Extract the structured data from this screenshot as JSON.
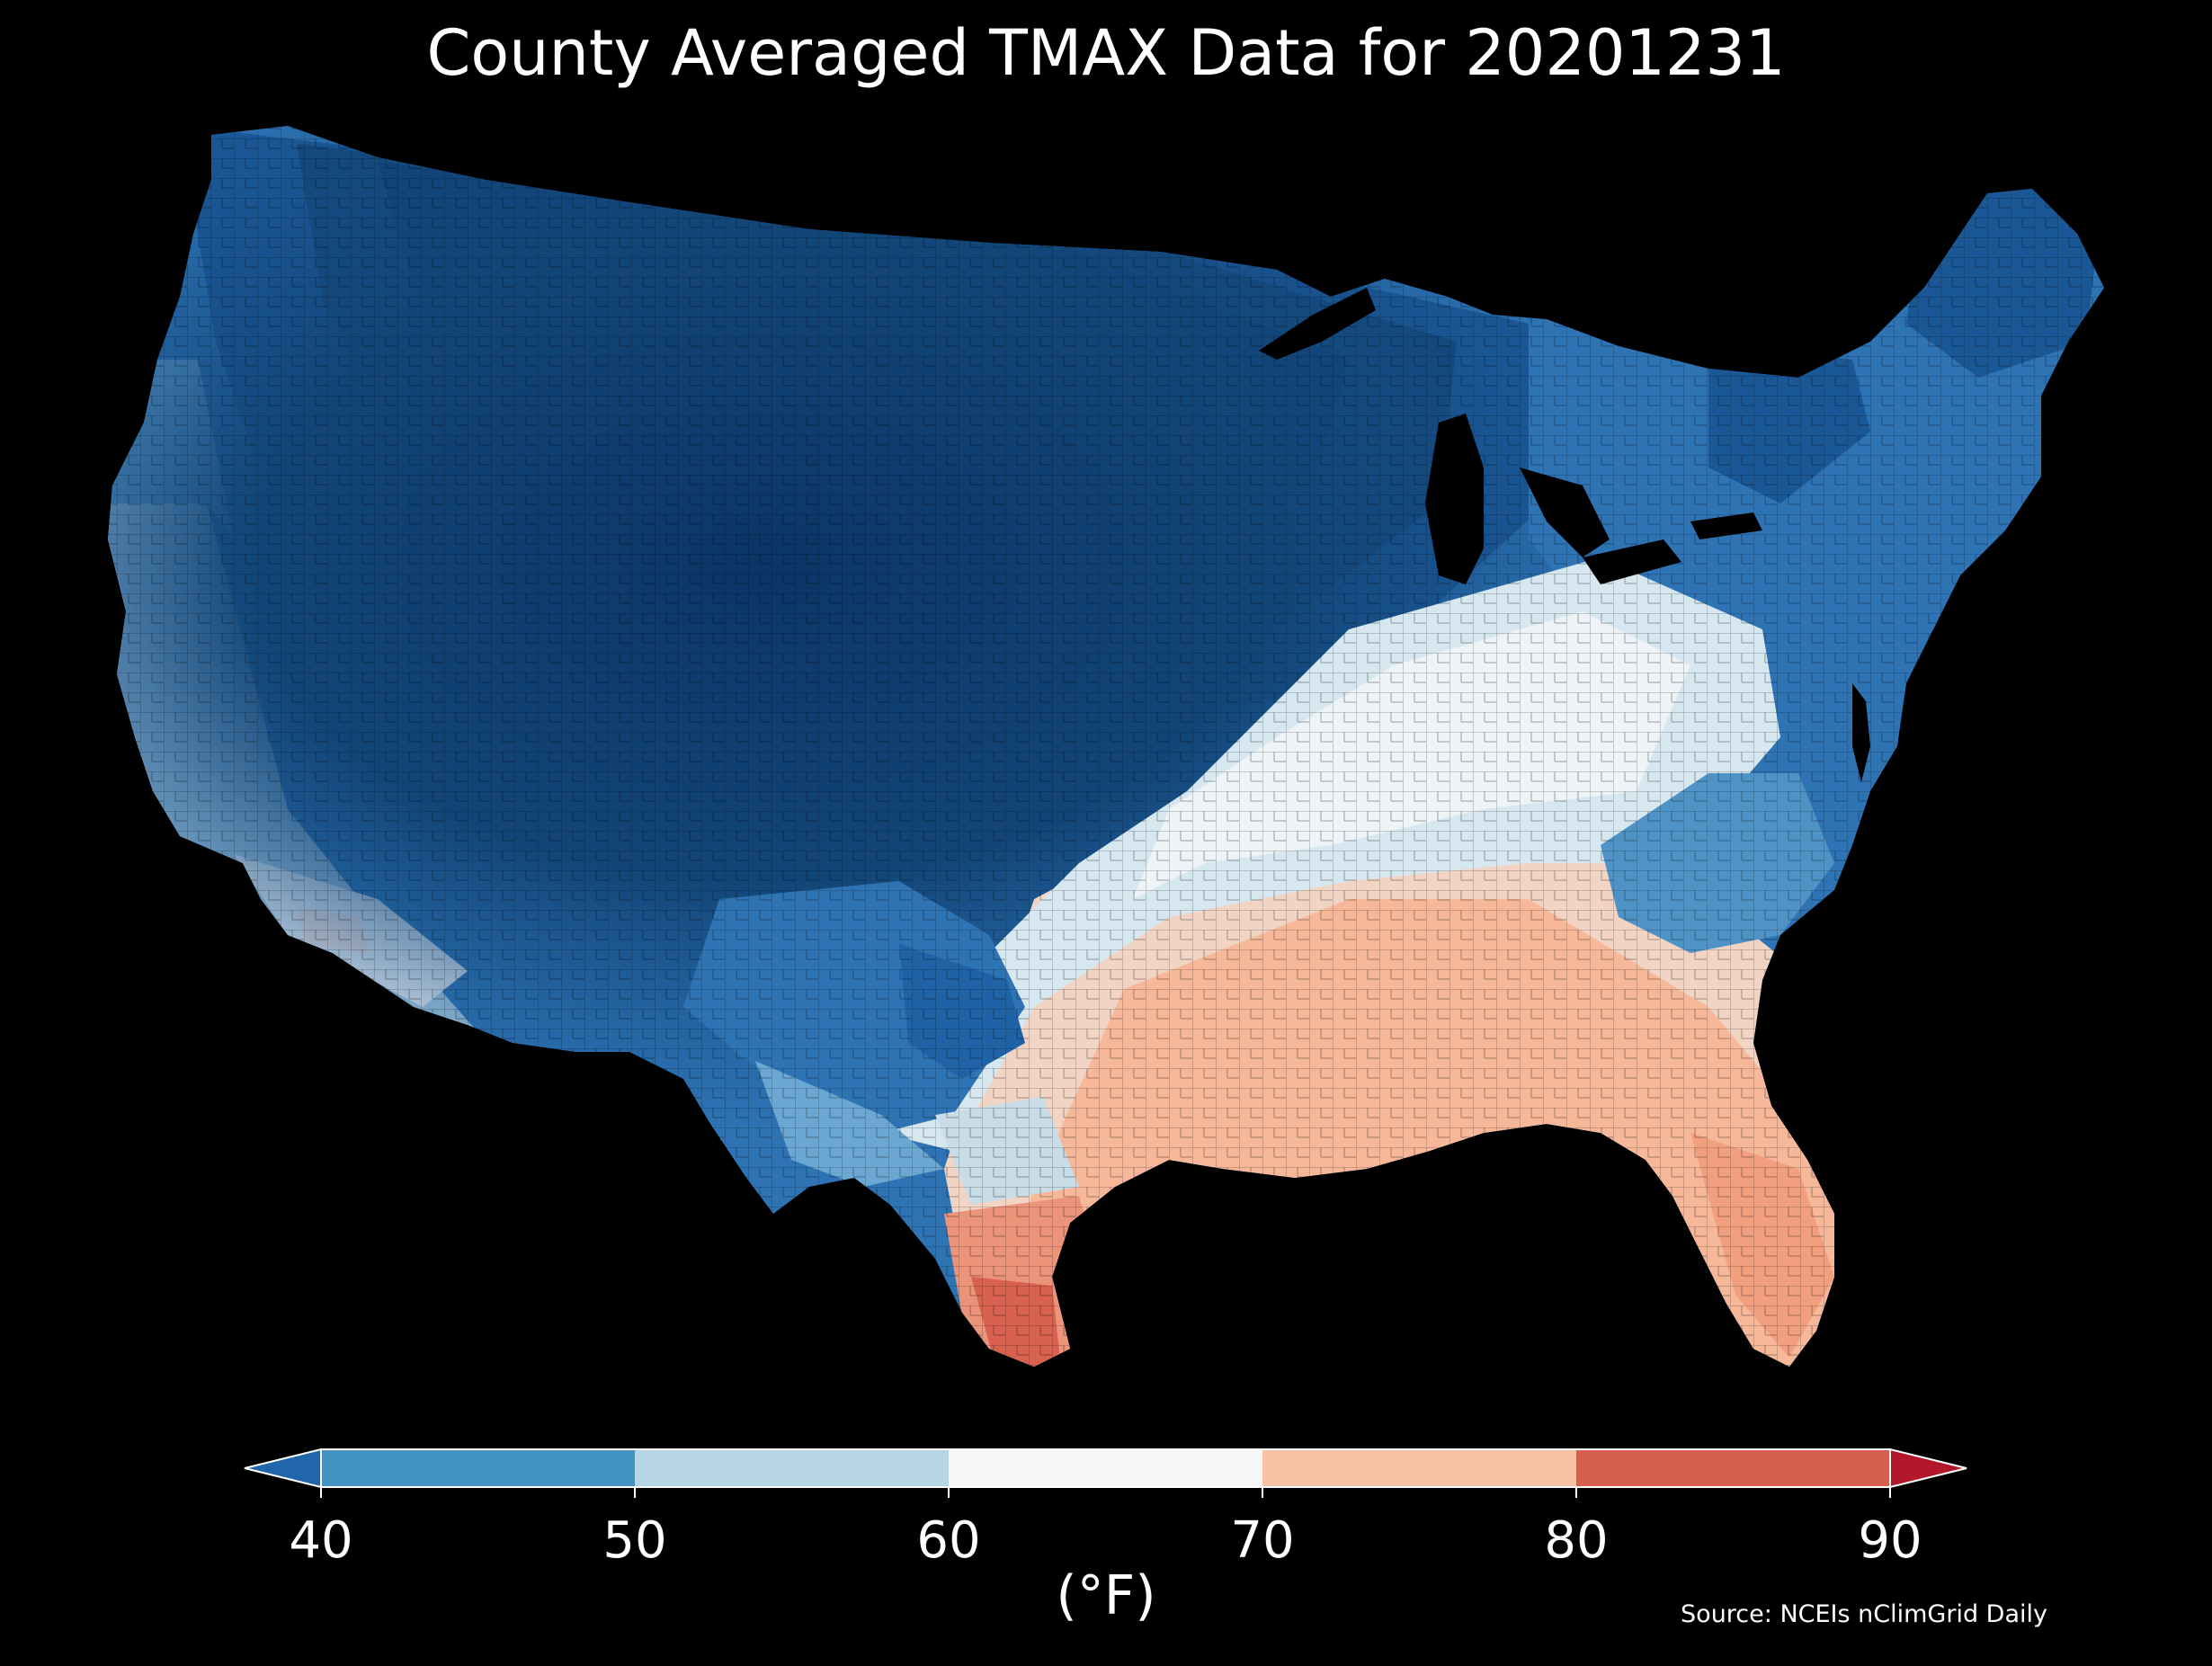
{
  "title": "County Averaged TMAX Data for 20201231",
  "source": "Source: NCEIs nClimGrid Daily",
  "colorbar": {
    "unit_label": "(°F)",
    "ticks": [
      "40",
      "50",
      "60",
      "70",
      "80",
      "90"
    ],
    "extend": "both",
    "bins": [
      {
        "min": 40,
        "max": 50,
        "color": "#4393c3"
      },
      {
        "min": 50,
        "max": 60,
        "color": "#b6d6e8"
      },
      {
        "min": 60,
        "max": 70,
        "color": "#f7f7f7"
      },
      {
        "min": 70,
        "max": 80,
        "color": "#f8c1a6"
      },
      {
        "min": 80,
        "max": 90,
        "color": "#d6604d"
      }
    ],
    "under_color": "#2166ac",
    "over_color": "#b2182b"
  },
  "map": {
    "region": "Contiguous United States, county level",
    "background": "#000000",
    "palette": {
      "below40": "#15487f",
      "40_50": "#3a82bf",
      "50_60": "#a9cde3",
      "60_70": "#eef3f6",
      "70_80": "#f7b89a",
      "80_90": "#d8614f"
    }
  }
}
